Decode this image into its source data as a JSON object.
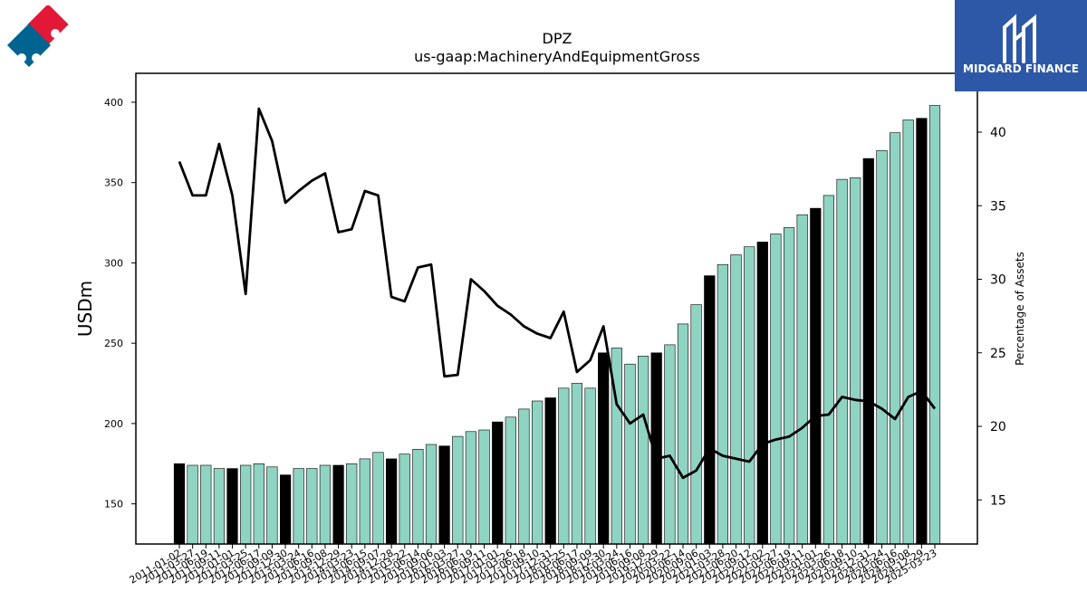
{
  "brand": {
    "name": "MIDGARD FINANCE"
  },
  "chart_data": {
    "type": "bar",
    "title": "DPZ",
    "subtitle": "us-gaap:MachineryAndEquipmentGross",
    "ylabel": "USDm",
    "y2label": "Percentage of Assets",
    "ylim": [
      125,
      418
    ],
    "y2lim": [
      12,
      44
    ],
    "yticks": [
      150,
      200,
      250,
      300,
      350,
      400
    ],
    "y2ticks": [
      15,
      20,
      25,
      30,
      35,
      40
    ],
    "colors": {
      "annual": "#000000",
      "quarterly": "#8fd3c3",
      "line": "#000000"
    },
    "categories": [
      "2011-01-02",
      "2011-03-27",
      "2011-06-19",
      "2011-09-11",
      "2012-01-01",
      "2012-03-25",
      "2012-06-17",
      "2012-09-09",
      "2012-12-30",
      "2013-03-24",
      "2013-06-16",
      "2013-09-08",
      "2013-12-29",
      "2014-03-23",
      "2014-06-15",
      "2014-09-07",
      "2014-12-28",
      "2015-03-22",
      "2015-06-14",
      "2015-09-06",
      "2016-01-03",
      "2016-03-27",
      "2016-06-19",
      "2016-09-11",
      "2017-01-01",
      "2017-03-26",
      "2017-06-18",
      "2017-09-10",
      "2017-12-31",
      "2018-03-25",
      "2018-06-17",
      "2018-09-09",
      "2018-12-30",
      "2019-03-24",
      "2019-06-16",
      "2019-09-08",
      "2019-12-29",
      "2020-03-22",
      "2020-06-14",
      "2020-09-06",
      "2021-01-03",
      "2021-03-28",
      "2021-06-20",
      "2021-09-12",
      "2022-01-02",
      "2022-03-27",
      "2022-06-19",
      "2022-09-11",
      "2023-01-01",
      "2023-03-26",
      "2023-06-18",
      "2023-09-10",
      "2023-12-31",
      "2024-03-24",
      "2024-06-16",
      "2024-09-08",
      "2024-12-29",
      "2025-03-23"
    ],
    "annual_flags": [
      1,
      0,
      0,
      0,
      1,
      0,
      0,
      0,
      1,
      0,
      0,
      0,
      1,
      0,
      0,
      0,
      1,
      0,
      0,
      0,
      1,
      0,
      0,
      0,
      1,
      0,
      0,
      0,
      1,
      0,
      0,
      0,
      1,
      0,
      0,
      0,
      1,
      0,
      0,
      0,
      1,
      0,
      0,
      0,
      1,
      0,
      0,
      0,
      1,
      0,
      0,
      0,
      1,
      0,
      0,
      0,
      1,
      0
    ],
    "series": [
      {
        "name": "Machinery and equipment",
        "type": "bar",
        "values": [
          175,
          174,
          174,
          172,
          172,
          174,
          175,
          173,
          168,
          172,
          172,
          174,
          174,
          175,
          178,
          182,
          178,
          181,
          184,
          187,
          186,
          192,
          195,
          196,
          201,
          204,
          209,
          214,
          216,
          222,
          225,
          222,
          244,
          247,
          237,
          242,
          244,
          249,
          262,
          274,
          292,
          299,
          305,
          310,
          313,
          318,
          322,
          330,
          334,
          342,
          352,
          353,
          365,
          370,
          381,
          389,
          390,
          398
        ]
      },
      {
        "name": "Percentage of Assets",
        "type": "line",
        "axis": "right",
        "values": [
          38,
          35.7,
          35.7,
          39.2,
          35.7,
          29,
          41.6,
          39.4,
          35.2,
          36,
          36.7,
          37.2,
          33.2,
          33.4,
          36,
          35.7,
          28.8,
          28.5,
          30.8,
          31,
          23.4,
          23.5,
          30,
          29.2,
          28.2,
          27.6,
          26.8,
          26.3,
          26,
          27.8,
          23.7,
          24.5,
          26.8,
          21.5,
          20.2,
          20.8,
          17.8,
          18,
          16.5,
          17,
          18.5,
          18,
          17.8,
          17.6,
          18.8,
          19.1,
          19.3,
          19.9,
          20.7,
          20.8,
          22,
          21.8,
          21.7,
          21.2,
          20.5,
          22,
          22.4,
          21.2
        ]
      }
    ]
  }
}
